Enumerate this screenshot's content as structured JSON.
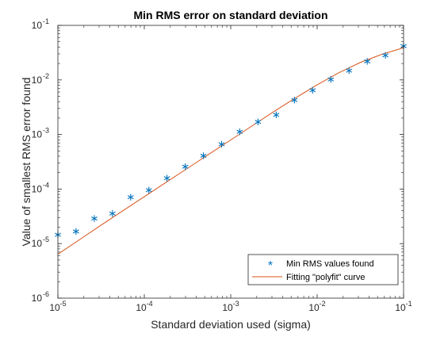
{
  "chart_data": {
    "type": "scatter",
    "title": "Min RMS error on standard deviation",
    "xlabel": "Standard deviation used (sigma)",
    "ylabel": "Value of smallest RMS error found",
    "xscale": "log",
    "yscale": "log",
    "xlim": [
      1e-05,
      0.1
    ],
    "ylim": [
      1e-06,
      0.1
    ],
    "grid": false,
    "legend_position": "bottom-right",
    "x_ticks": [
      {
        "base": "10",
        "exp": "-5",
        "value": 1e-05
      },
      {
        "base": "10",
        "exp": "-4",
        "value": 0.0001
      },
      {
        "base": "10",
        "exp": "-3",
        "value": 0.001
      },
      {
        "base": "10",
        "exp": "-2",
        "value": 0.01
      },
      {
        "base": "10",
        "exp": "-1",
        "value": 0.1
      }
    ],
    "y_ticks": [
      {
        "base": "10",
        "exp": "-6",
        "value": 1e-06
      },
      {
        "base": "10",
        "exp": "-5",
        "value": 1e-05
      },
      {
        "base": "10",
        "exp": "-4",
        "value": 0.0001
      },
      {
        "base": "10",
        "exp": "-3",
        "value": 0.001
      },
      {
        "base": "10",
        "exp": "-2",
        "value": 0.01
      },
      {
        "base": "10",
        "exp": "-1",
        "value": 0.1
      }
    ],
    "series": [
      {
        "name": "Min RMS values found",
        "kind": "markers",
        "marker": "*",
        "color": "#0072BD",
        "x": [
          1e-05,
          1.62e-05,
          2.64e-05,
          4.28e-05,
          6.95e-05,
          0.000113,
          0.000183,
          0.000298,
          0.000483,
          0.000785,
          0.00127,
          0.00207,
          0.00336,
          0.00546,
          0.00886,
          0.0144,
          0.0234,
          0.038,
          0.0616,
          0.1
        ],
        "y": [
          1.45e-05,
          1.67e-05,
          2.88e-05,
          3.55e-05,
          7.08e-05,
          9.55e-05,
          0.000158,
          0.000257,
          0.000407,
          0.000661,
          0.00112,
          0.0017,
          0.00229,
          0.00427,
          0.00646,
          0.0102,
          0.0148,
          0.0219,
          0.0282,
          0.0417
        ]
      },
      {
        "name": "Fitting \"polyfit\" curve",
        "kind": "line",
        "color": "#D95319",
        "x": [
          1e-05,
          1.78e-05,
          3.16e-05,
          5.62e-05,
          0.0001,
          0.000178,
          0.000316,
          0.000562,
          0.001,
          0.00178,
          0.00316,
          0.00562,
          0.01,
          0.0178,
          0.0316,
          0.0562,
          0.1
        ],
        "y": [
          6.4e-06,
          1.18e-05,
          2.18e-05,
          3.98e-05,
          7.24e-05,
          0.000132,
          0.00024,
          0.000437,
          0.000794,
          0.00145,
          0.00263,
          0.00468,
          0.00813,
          0.0135,
          0.0209,
          0.0295,
          0.0389
        ]
      }
    ]
  }
}
